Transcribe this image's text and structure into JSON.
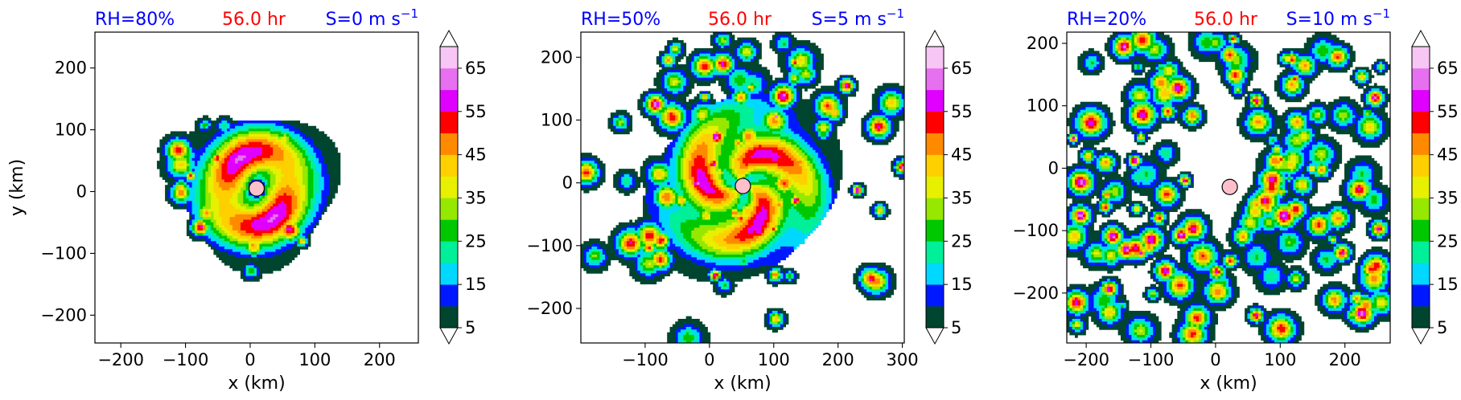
{
  "colors": {
    "title_blue": "#0000ff",
    "title_red": "#ff0000",
    "marker_fill": "#ffc0cb"
  },
  "colorbar": {
    "levels": [
      5,
      10,
      15,
      20,
      25,
      30,
      35,
      40,
      45,
      50,
      55,
      60,
      65,
      70
    ],
    "tick_labels": [
      "5",
      "15",
      "25",
      "35",
      "45",
      "55",
      "65"
    ],
    "tick_values": [
      5,
      15,
      25,
      35,
      45,
      55,
      65
    ],
    "colors": [
      "#00452f",
      "#0018ff",
      "#00d8ff",
      "#00f09a",
      "#00c800",
      "#96e800",
      "#e6f000",
      "#ffd000",
      "#ff8a00",
      "#ff0000",
      "#e000ff",
      "#e670f0",
      "#f7c6f5"
    ],
    "extend": "both"
  },
  "chart_data": [
    {
      "type": "contourf",
      "title_left": "RH=80%",
      "title_center": "56.0 hr",
      "title_right_prefix": "S=0 m s",
      "title_right_sup": "−1",
      "xlabel": "x (km)",
      "ylabel": "y (km)",
      "xlim": [
        -240,
        260
      ],
      "ylim": [
        -245,
        258
      ],
      "xticks": [
        -200,
        -100,
        0,
        100,
        200
      ],
      "xtick_labels": [
        "−200",
        "−100",
        "0",
        "100",
        "200"
      ],
      "yticks": [
        -200,
        -100,
        0,
        100,
        200
      ],
      "ytick_labels": [
        "−200",
        "−100",
        "0",
        "100",
        "200"
      ],
      "center_marker": [
        10,
        5
      ],
      "storm": {
        "seed": 11,
        "rx": 120,
        "ry": 110,
        "gap": 140,
        "spiral": 1.2,
        "amp": 55,
        "blobs": 18
      }
    },
    {
      "type": "contourf",
      "title_left": "RH=50%",
      "title_center": "56.0 hr",
      "title_right_prefix": "S=5 m s",
      "title_right_sup": "−1",
      "xlabel": "x (km)",
      "ylabel": "",
      "xlim": [
        -200,
        303
      ],
      "ylim": [
        -255,
        240
      ],
      "xticks": [
        -100,
        0,
        100,
        200,
        300
      ],
      "xtick_labels": [
        "−100",
        "0",
        "100",
        "200",
        "300"
      ],
      "yticks": [
        -200,
        -100,
        0,
        100,
        200
      ],
      "ytick_labels": [
        "−200",
        "−100",
        "0",
        "100",
        "200"
      ],
      "center_marker": [
        52,
        -5
      ],
      "storm": {
        "seed": 23,
        "rx": 150,
        "ry": 160,
        "gap": 40,
        "spiral": 1.6,
        "amp": 50,
        "blobs": 90
      }
    },
    {
      "type": "contourf",
      "title_left": "RH=20%",
      "title_center": "56.0 hr",
      "title_right_prefix": "S=10 m s",
      "title_right_sup": "−1",
      "xlabel": "x (km)",
      "ylabel": "",
      "xlim": [
        -230,
        270
      ],
      "ylim": [
        -280,
        218
      ],
      "xticks": [
        -200,
        -100,
        0,
        100,
        200
      ],
      "xtick_labels": [
        "−200",
        "−100",
        "0",
        "100",
        "200"
      ],
      "yticks": [
        -200,
        -100,
        0,
        100,
        200
      ],
      "ytick_labels": [
        "−200",
        "−100",
        "0",
        "100",
        "200"
      ],
      "center_marker": [
        22,
        -30
      ],
      "storm": {
        "seed": 37,
        "rx": 200,
        "ry": 200,
        "gap": 0,
        "spiral": 1.0,
        "amp": 45,
        "blobs": 140
      }
    }
  ]
}
